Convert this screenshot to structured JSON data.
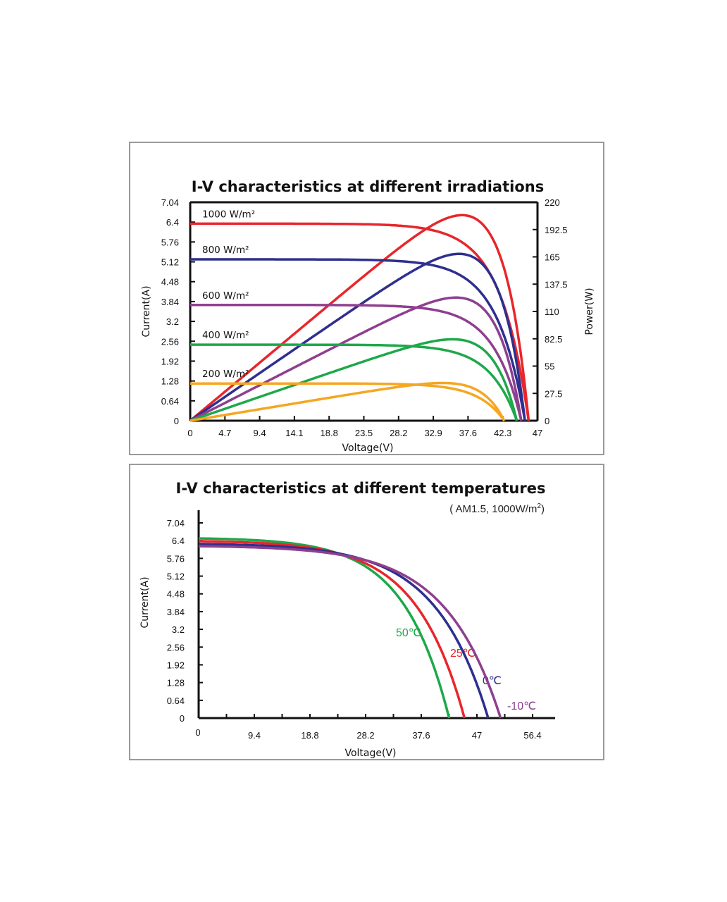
{
  "chart_data": [
    {
      "type": "line",
      "title": "I-V characteristics at different irradiations",
      "xlabel": "Voltage(V)",
      "ylabel": "Current(A)",
      "y2label": "Power(W)",
      "xlim": [
        0,
        47
      ],
      "ylim": [
        0,
        7.04
      ],
      "y2lim": [
        0,
        220
      ],
      "x_ticks": [
        "0",
        "4.7",
        "9.4",
        "14.1",
        "18.8",
        "23.5",
        "28.2",
        "32.9",
        "37.6",
        "42.3",
        "47"
      ],
      "y_ticks": [
        "0",
        "0.64",
        "1.28",
        "1.92",
        "2.56",
        "3.2",
        "3.84",
        "4.48",
        "5.12",
        "5.76",
        "6.4",
        "7.04"
      ],
      "y2_ticks": [
        "0",
        "27.5",
        "55",
        "82.5",
        "110",
        "137.5",
        "165",
        "192.5",
        "220"
      ],
      "grid": false,
      "series": [
        {
          "name": "1000 W/m²",
          "color": "#e8262b",
          "isc": 6.35,
          "voc": 45.8,
          "vmp": 37.0,
          "imp": 6.0,
          "pmax": 207
        },
        {
          "name": "800 W/m²",
          "color": "#2e2f8e",
          "isc": 5.2,
          "voc": 45.3,
          "vmp": 37.0,
          "imp": 4.8,
          "pmax": 168
        },
        {
          "name": "600 W/m²",
          "color": "#8e3f8f",
          "isc": 3.73,
          "voc": 44.8,
          "vmp": 37.0,
          "imp": 3.5,
          "pmax": 124
        },
        {
          "name": "400 W/m²",
          "color": "#1ea84a",
          "isc": 2.45,
          "voc": 44.2,
          "vmp": 37.0,
          "imp": 2.28,
          "pmax": 82
        },
        {
          "name": "200 W/m²",
          "color": "#f5a623",
          "isc": 1.2,
          "voc": 42.5,
          "vmp": 36.5,
          "imp": 1.1,
          "pmax": 38
        }
      ]
    },
    {
      "type": "line",
      "title": "I-V characteristics at different temperatures",
      "subtitle_prefix": "( AM1.5,  1000W/m",
      "subtitle_sup": "2",
      "subtitle_suffix": ")",
      "xlabel": "Voltage(V)",
      "ylabel": "Current(A)",
      "xlim": [
        0,
        56.4
      ],
      "ylim": [
        0,
        7.04
      ],
      "x_ticks": [
        "0",
        "9.4",
        "18.8",
        "28.2",
        "37.6",
        "47",
        "56.4"
      ],
      "y_ticks": [
        "0",
        "0.64",
        "1.28",
        "1.92",
        "2.56",
        "3.2",
        "3.84",
        "4.48",
        "5.12",
        "5.76",
        "6.4",
        "7.04"
      ],
      "grid": false,
      "series": [
        {
          "name": "50℃",
          "color": "#1ea84a",
          "isc": 6.48,
          "voc": 42.3
        },
        {
          "name": "25℃",
          "color": "#e8262b",
          "isc": 6.38,
          "voc": 44.9
        },
        {
          "name": "0℃",
          "color": "#2e2f8e",
          "isc": 6.28,
          "voc": 48.9
        },
        {
          "name": "-10℃",
          "color": "#8e3f8f",
          "isc": 6.2,
          "voc": 51.0
        }
      ]
    }
  ]
}
